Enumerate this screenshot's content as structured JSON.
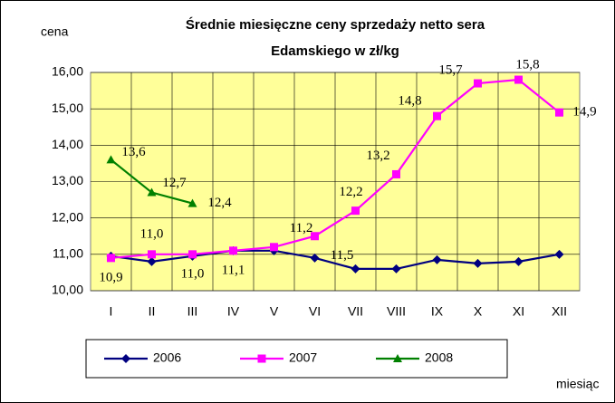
{
  "chart_data": {
    "type": "line",
    "title": [
      "Średnie miesięczne ceny sprzedaży netto sera",
      "Edamskiego w zł/kg"
    ],
    "y_label": "cena",
    "x_label": "miesiąc",
    "categories": [
      "I",
      "II",
      "III",
      "IV",
      "V",
      "VI",
      "VII",
      "VIII",
      "IX",
      "X",
      "XI",
      "XII"
    ],
    "series": [
      {
        "name": "2006",
        "color": "#000080",
        "marker": "diamond",
        "values": [
          10.95,
          10.8,
          10.95,
          11.1,
          11.1,
          10.9,
          10.6,
          10.6,
          10.85,
          10.75,
          10.8,
          11.0
        ]
      },
      {
        "name": "2007",
        "color": "#ff00ff",
        "marker": "square",
        "values": [
          10.9,
          11.0,
          11.0,
          11.1,
          11.2,
          11.5,
          12.2,
          13.2,
          14.8,
          15.7,
          15.8,
          14.9
        ],
        "value_labels": [
          "10,9",
          "11,0",
          "11,0",
          "11,1",
          "11,2",
          "11,5",
          "12,2",
          "13,2",
          "14,8",
          "15,7",
          "15,8",
          "14,9"
        ]
      },
      {
        "name": "2008",
        "color": "#008000",
        "marker": "triangle",
        "values": [
          13.6,
          12.7,
          12.4,
          null,
          null,
          null,
          null,
          null,
          null,
          null,
          null,
          null
        ],
        "value_labels": [
          "13,6",
          "12,7",
          "12,4",
          null,
          null,
          null,
          null,
          null,
          null,
          null,
          null,
          null
        ]
      }
    ],
    "ylim": [
      10,
      16
    ],
    "yticks": [
      {
        "value": 10,
        "label": "10,00"
      },
      {
        "value": 11,
        "label": "11,00"
      },
      {
        "value": 12,
        "label": "12,00"
      },
      {
        "value": 13,
        "label": "13,00"
      },
      {
        "value": 14,
        "label": "14,00"
      },
      {
        "value": 15,
        "label": "15,00"
      },
      {
        "value": 16,
        "label": "16,00"
      }
    ],
    "grid": true,
    "plot_background": "#ffff99",
    "legend": "bottom"
  }
}
